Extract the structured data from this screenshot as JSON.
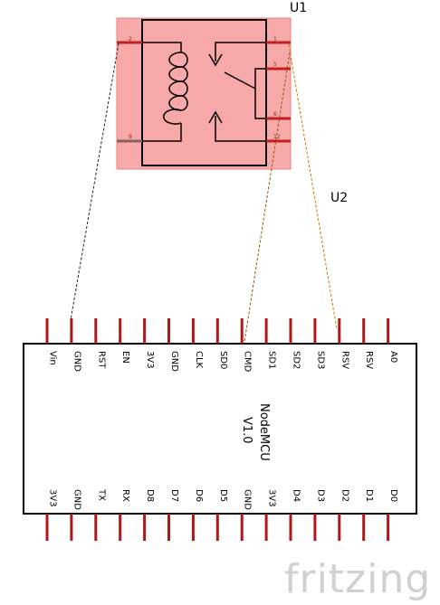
{
  "relay": {
    "ref": "U1",
    "pins": [
      {
        "num": "2"
      },
      {
        "num": "9"
      },
      {
        "num": "1"
      },
      {
        "num": "5"
      },
      {
        "num": "6"
      },
      {
        "num": "12"
      }
    ]
  },
  "mcu": {
    "ref": "U2",
    "name_line1": "NodeMCU",
    "name_line2": "V1.0",
    "top_pins": [
      "Vin",
      "GND",
      "RST",
      "EN",
      "3V3",
      "GND",
      "CLK",
      "SD0",
      "CMD",
      "SD1",
      "SD2",
      "SD3",
      "RSV",
      "RSV",
      "A0"
    ],
    "bottom_pins": [
      "3V3",
      "GND",
      "TX",
      "RX",
      "D8",
      "D7",
      "D6",
      "D5",
      "GND",
      "3V3",
      "D4",
      "D3",
      "D2",
      "D1",
      "D0"
    ]
  },
  "colors": {
    "relay_fill": "#f7a8a8",
    "pin_red": "#b01818",
    "wire_black": "#222222",
    "wire_orange": "#c87800",
    "wire_dark_orange": "#8a5a00"
  },
  "branding": "fritzing"
}
